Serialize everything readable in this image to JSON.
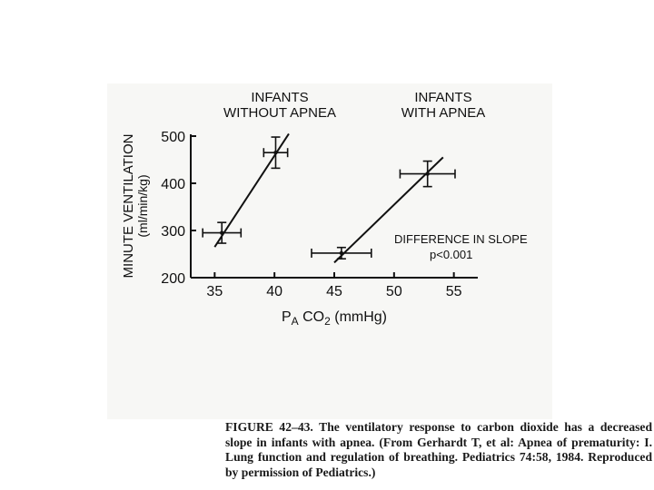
{
  "chart_data": {
    "type": "scatter",
    "xlabel": "PACO2 (mmHg)",
    "xlabel_parts": {
      "p": "P",
      "sub_a": "A",
      "co": "CO",
      "sub_2": "2",
      "unit": " (mmHg)"
    },
    "ylabel": "MINUTE VENTILATION",
    "ylabel_unit": "(ml/min/kg)",
    "xlim": [
      33,
      57
    ],
    "ylim": [
      200,
      500
    ],
    "x_ticks": [
      35,
      40,
      45,
      50,
      55
    ],
    "y_ticks": [
      200,
      300,
      400,
      500
    ],
    "x_tick_labels": [
      "35",
      "40",
      "45",
      "50",
      "55"
    ],
    "y_tick_labels": [
      "200",
      "300",
      "400",
      "500"
    ],
    "series": [
      {
        "label_lines": [
          "INFANTS",
          "WITHOUT APNEA"
        ],
        "points": [
          {
            "x": 35.6,
            "y": 295,
            "xerr": 1.6,
            "yerr": 22
          },
          {
            "x": 40.1,
            "y": 465,
            "xerr": 1.0,
            "yerr": 33
          }
        ],
        "fit": {
          "x": [
            35.0,
            41.2
          ],
          "y": [
            265,
            505
          ]
        }
      },
      {
        "label_lines": [
          "INFANTS",
          "WITH APNEA"
        ],
        "points": [
          {
            "x": 45.6,
            "y": 252,
            "xerr": 2.5,
            "yerr": 12
          },
          {
            "x": 52.8,
            "y": 420,
            "xerr": 2.3,
            "yerr": 27
          }
        ],
        "fit": {
          "x": [
            45.0,
            54.1
          ],
          "y": [
            232,
            455
          ]
        }
      }
    ],
    "annotation_lines": [
      "DIFFERENCE IN SLOPE",
      "p<0.001"
    ]
  },
  "caption": "FIGURE 42–43. The ventilatory response to carbon dioxide has a decreased slope in infants with apnea. (From Gerhardt T, et al: Apnea of prematurity: I. Lung function and regulation of breathing. Pediatrics 74:58, 1984. Reproduced by permission of Pediatrics.)"
}
